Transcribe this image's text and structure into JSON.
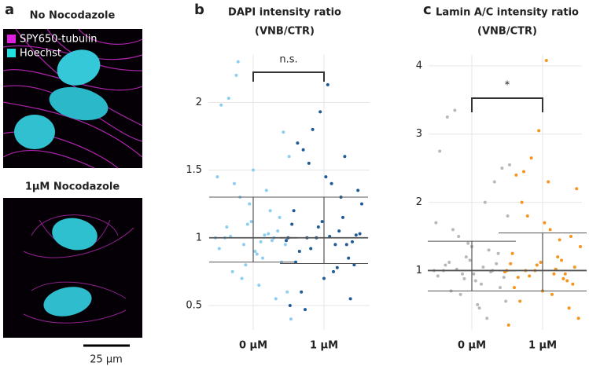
{
  "panel_labels": [
    "a",
    "b",
    "c"
  ],
  "panel_a": {
    "top_title": "No Nocodazole",
    "bottom_title": "1µM Nocodazole",
    "legend": [
      {
        "name": "SPY650-tubulin",
        "color": "#e020e0"
      },
      {
        "name": "Hoechst",
        "color": "#20e0e0"
      }
    ],
    "scale_bar": "25 µm"
  },
  "chart_data": [
    {
      "type": "strip",
      "title": "DAPI intensity ratio",
      "subtitle": "(VNB/CTR)",
      "annotation": "n.s.",
      "categories": [
        "0 µM",
        "1 µM"
      ],
      "ylim": [
        0.32,
        2.35
      ],
      "yticks": [
        0.5,
        1,
        1.5,
        2
      ],
      "grid": true,
      "series": [
        {
          "color": "#8ecdf2",
          "summary": {
            "upper": 1.3,
            "center": 1.0,
            "lower": 0.82
          },
          "values": [
            1.0,
            0.95,
            1.05,
            1.2,
            0.85,
            0.9,
            1.1,
            1.3,
            0.75,
            1.0,
            1.45,
            0.6,
            1.15,
            0.98,
            1.02,
            0.88,
            1.25,
            0.7,
            1.4,
            1.08,
            0.92,
            1.6,
            0.82,
            1.0,
            1.35,
            0.65,
            1.12,
            0.95,
            2.2,
            2.03,
            1.98,
            0.4,
            1.78,
            0.55,
            1.03,
            0.97,
            1.5,
            0.8,
            2.3,
            1.01
          ]
        },
        {
          "color": "#1f5a96",
          "summary": {
            "upper": 1.3,
            "center": 1.0,
            "lower": 0.81
          },
          "values": [
            1.0,
            0.9,
            1.1,
            1.25,
            0.8,
            0.95,
            1.05,
            1.4,
            0.7,
            1.0,
            1.55,
            0.6,
            1.2,
            0.98,
            1.02,
            0.85,
            1.3,
            0.75,
            1.45,
            1.08,
            0.92,
            1.65,
            0.82,
            1.0,
            1.35,
            0.55,
            1.15,
            0.95,
            2.13,
            1.93,
            1.8,
            0.47,
            1.7,
            0.5,
            1.03,
            0.97,
            1.6,
            0.78,
            1.01,
            1.12
          ]
        }
      ]
    },
    {
      "type": "strip",
      "title": "Lamin A/C intensity ratio",
      "subtitle": "(VNB/CTR)",
      "annotation": "*",
      "categories": [
        "0 µM",
        "1 µM"
      ],
      "ylim": [
        0.13,
        4.16
      ],
      "yticks": [
        1,
        2,
        3,
        4
      ],
      "grid": true,
      "series": [
        {
          "color": "#b8b8b8",
          "summary": {
            "upper": 1.43,
            "center": 1.0,
            "lower": 0.7
          },
          "values": [
            1.0,
            0.9,
            1.1,
            1.3,
            0.8,
            0.95,
            1.2,
            1.5,
            0.7,
            1.0,
            1.7,
            0.55,
            1.25,
            0.98,
            1.05,
            0.85,
            1.4,
            0.65,
            1.6,
            1.08,
            0.92,
            1.8,
            0.75,
            1.0,
            2.0,
            0.5,
            1.15,
            0.95,
            3.35,
            3.25,
            2.75,
            2.55,
            2.5,
            2.3,
            0.3,
            0.45,
            1.35,
            0.88,
            1.02,
            1.12
          ]
        },
        {
          "color": "#f7941d",
          "summary": {
            "upper": 1.55,
            "center": 1.0,
            "lower": 0.7
          },
          "values": [
            1.0,
            0.9,
            1.1,
            1.35,
            0.8,
            0.95,
            1.2,
            1.6,
            0.7,
            1.0,
            1.8,
            0.55,
            1.25,
            0.98,
            1.05,
            0.85,
            1.45,
            0.65,
            1.7,
            1.08,
            0.92,
            2.0,
            0.75,
            1.0,
            2.2,
            0.45,
            1.15,
            0.95,
            4.08,
            3.05,
            2.65,
            2.45,
            2.4,
            0.2,
            0.3,
            1.5,
            0.88,
            1.02,
            2.3,
            1.12
          ]
        }
      ]
    }
  ]
}
